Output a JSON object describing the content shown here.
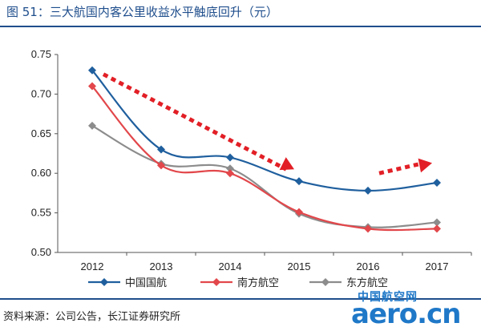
{
  "header": {
    "title": "图 51：三大航国内客公里收益水平触底回升（元）"
  },
  "footer": {
    "source": "资料来源：公司公告，长江证券研究所"
  },
  "watermark": {
    "cn": "中国航空网",
    "en": "aero.cn"
  },
  "chart_data": {
    "type": "line",
    "title": "图 51：三大航国内客公里收益水平触底回升（元）",
    "xlabel": "",
    "ylabel": "",
    "categories": [
      "2012",
      "2013",
      "2014",
      "2015",
      "2016",
      "2017"
    ],
    "ylim": [
      0.5,
      0.75
    ],
    "yticks": [
      "0.50",
      "0.55",
      "0.60",
      "0.65",
      "0.70",
      "0.75"
    ],
    "grid": false,
    "legend": "bottom",
    "series": [
      {
        "name": "中国国航",
        "color": "#1f5f9e",
        "marker": "diamond",
        "values": [
          0.73,
          0.63,
          0.62,
          0.59,
          0.578,
          0.588
        ]
      },
      {
        "name": "南方航空",
        "color": "#e2474b",
        "marker": "diamond",
        "values": [
          0.71,
          0.61,
          0.6,
          0.551,
          0.53,
          0.53
        ]
      },
      {
        "name": "东方航空",
        "color": "#8c8c8c",
        "marker": "diamond",
        "values": [
          0.66,
          0.612,
          0.606,
          0.549,
          0.532,
          0.538
        ]
      }
    ],
    "annotations": [
      {
        "type": "arrow",
        "direction": "down-right",
        "color": "#e21f26",
        "from_category": "2012",
        "to_category": "2015",
        "from_value": 0.725,
        "to_value": 0.605
      },
      {
        "type": "arrow",
        "direction": "up-right",
        "color": "#e21f26",
        "from_category": "2016",
        "to_category": "2017",
        "from_value": 0.6,
        "to_value": 0.613
      }
    ]
  }
}
